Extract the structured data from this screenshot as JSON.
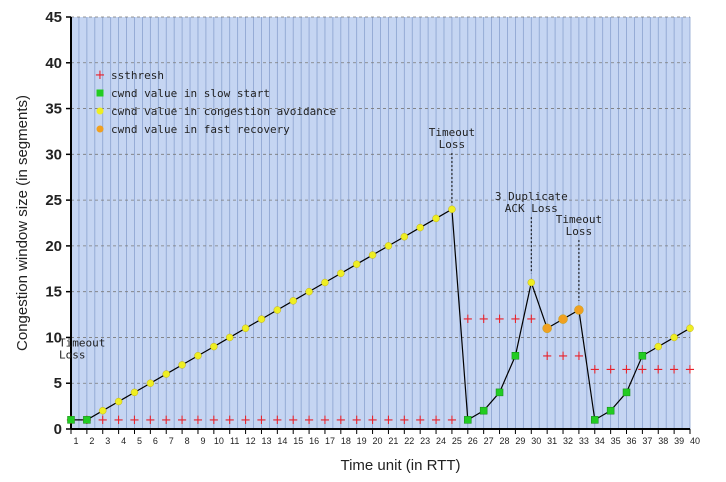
{
  "chart_data": {
    "type": "line",
    "xlabel": "Time unit (in RTT)",
    "ylabel": "Congestion window size (in segments)",
    "xlim": [
      1,
      40
    ],
    "ylim": [
      0,
      45
    ],
    "y_ticks": [
      0,
      5,
      10,
      15,
      20,
      25,
      30,
      35,
      40,
      45
    ],
    "x_ticks": [
      1,
      2,
      3,
      4,
      5,
      6,
      7,
      8,
      9,
      10,
      11,
      12,
      13,
      14,
      15,
      16,
      17,
      18,
      19,
      20,
      21,
      22,
      23,
      24,
      25,
      26,
      27,
      28,
      29,
      30,
      31,
      32,
      33,
      34,
      35,
      36,
      37,
      38,
      39,
      40
    ],
    "grid": true,
    "legend": {
      "placement": "top-left",
      "entries": [
        {
          "key": "ssthresh",
          "label": "ssthresh",
          "color": "#e8212a",
          "marker": "plus"
        },
        {
          "key": "slow_start",
          "label": "cwnd value in slow start",
          "color": "#22cc22",
          "marker": "square"
        },
        {
          "key": "congestion_avoidance",
          "label": "cwnd value in congestion avoidance",
          "color": "#eeee22",
          "marker": "circle"
        },
        {
          "key": "fast_recovery",
          "label": "cwnd value in fast recovery",
          "color": "#f0a020",
          "marker": "circle"
        }
      ]
    },
    "cwnd": [
      {
        "x": 1,
        "y": 1,
        "phase": "slow_start"
      },
      {
        "x": 2,
        "y": 1,
        "phase": "slow_start"
      },
      {
        "x": 3,
        "y": 2,
        "phase": "congestion_avoidance"
      },
      {
        "x": 4,
        "y": 3,
        "phase": "congestion_avoidance"
      },
      {
        "x": 5,
        "y": 4,
        "phase": "congestion_avoidance"
      },
      {
        "x": 6,
        "y": 5,
        "phase": "congestion_avoidance"
      },
      {
        "x": 7,
        "y": 6,
        "phase": "congestion_avoidance"
      },
      {
        "x": 8,
        "y": 7,
        "phase": "congestion_avoidance"
      },
      {
        "x": 9,
        "y": 8,
        "phase": "congestion_avoidance"
      },
      {
        "x": 10,
        "y": 9,
        "phase": "congestion_avoidance"
      },
      {
        "x": 11,
        "y": 10,
        "phase": "congestion_avoidance"
      },
      {
        "x": 12,
        "y": 11,
        "phase": "congestion_avoidance"
      },
      {
        "x": 13,
        "y": 12,
        "phase": "congestion_avoidance"
      },
      {
        "x": 14,
        "y": 13,
        "phase": "congestion_avoidance"
      },
      {
        "x": 15,
        "y": 14,
        "phase": "congestion_avoidance"
      },
      {
        "x": 16,
        "y": 15,
        "phase": "congestion_avoidance"
      },
      {
        "x": 17,
        "y": 16,
        "phase": "congestion_avoidance"
      },
      {
        "x": 18,
        "y": 17,
        "phase": "congestion_avoidance"
      },
      {
        "x": 19,
        "y": 18,
        "phase": "congestion_avoidance"
      },
      {
        "x": 20,
        "y": 19,
        "phase": "congestion_avoidance"
      },
      {
        "x": 21,
        "y": 20,
        "phase": "congestion_avoidance"
      },
      {
        "x": 22,
        "y": 21,
        "phase": "congestion_avoidance"
      },
      {
        "x": 23,
        "y": 22,
        "phase": "congestion_avoidance"
      },
      {
        "x": 24,
        "y": 23,
        "phase": "congestion_avoidance"
      },
      {
        "x": 25,
        "y": 24,
        "phase": "congestion_avoidance"
      },
      {
        "x": 26,
        "y": 1,
        "phase": "slow_start"
      },
      {
        "x": 27,
        "y": 2,
        "phase": "slow_start"
      },
      {
        "x": 28,
        "y": 4,
        "phase": "slow_start"
      },
      {
        "x": 29,
        "y": 8,
        "phase": "slow_start"
      },
      {
        "x": 30,
        "y": 16,
        "phase": "congestion_avoidance"
      },
      {
        "x": 31,
        "y": 11,
        "phase": "fast_recovery"
      },
      {
        "x": 32,
        "y": 12,
        "phase": "fast_recovery"
      },
      {
        "x": 33,
        "y": 13,
        "phase": "fast_recovery"
      },
      {
        "x": 34,
        "y": 1,
        "phase": "slow_start"
      },
      {
        "x": 35,
        "y": 2,
        "phase": "slow_start"
      },
      {
        "x": 36,
        "y": 4,
        "phase": "slow_start"
      },
      {
        "x": 37,
        "y": 8,
        "phase": "slow_start"
      },
      {
        "x": 38,
        "y": 9,
        "phase": "congestion_avoidance"
      },
      {
        "x": 39,
        "y": 10,
        "phase": "congestion_avoidance"
      },
      {
        "x": 40,
        "y": 11,
        "phase": "congestion_avoidance"
      }
    ],
    "ssthresh": [
      {
        "x": 1,
        "y": 1
      },
      {
        "x": 2,
        "y": 1
      },
      {
        "x": 3,
        "y": 1
      },
      {
        "x": 4,
        "y": 1
      },
      {
        "x": 5,
        "y": 1
      },
      {
        "x": 6,
        "y": 1
      },
      {
        "x": 7,
        "y": 1
      },
      {
        "x": 8,
        "y": 1
      },
      {
        "x": 9,
        "y": 1
      },
      {
        "x": 10,
        "y": 1
      },
      {
        "x": 11,
        "y": 1
      },
      {
        "x": 12,
        "y": 1
      },
      {
        "x": 13,
        "y": 1
      },
      {
        "x": 14,
        "y": 1
      },
      {
        "x": 15,
        "y": 1
      },
      {
        "x": 16,
        "y": 1
      },
      {
        "x": 17,
        "y": 1
      },
      {
        "x": 18,
        "y": 1
      },
      {
        "x": 19,
        "y": 1
      },
      {
        "x": 20,
        "y": 1
      },
      {
        "x": 21,
        "y": 1
      },
      {
        "x": 22,
        "y": 1
      },
      {
        "x": 23,
        "y": 1
      },
      {
        "x": 24,
        "y": 1
      },
      {
        "x": 25,
        "y": 1
      },
      {
        "x": 26,
        "y": 12
      },
      {
        "x": 27,
        "y": 12
      },
      {
        "x": 28,
        "y": 12
      },
      {
        "x": 29,
        "y": 12
      },
      {
        "x": 30,
        "y": 12
      },
      {
        "x": 31,
        "y": 8
      },
      {
        "x": 32,
        "y": 8
      },
      {
        "x": 33,
        "y": 8
      },
      {
        "x": 34,
        "y": 6.5
      },
      {
        "x": 35,
        "y": 6.5
      },
      {
        "x": 36,
        "y": 6.5
      },
      {
        "x": 37,
        "y": 6.5
      },
      {
        "x": 38,
        "y": 6.5
      },
      {
        "x": 39,
        "y": 6.5
      },
      {
        "x": 40,
        "y": 6.5
      }
    ],
    "annotations": [
      {
        "lines": [
          "Timeout",
          "Loss"
        ],
        "x": 1,
        "y": 9,
        "anchor": "start",
        "pointer": false
      },
      {
        "lines": [
          "Timeout",
          "Loss"
        ],
        "x": 25,
        "y": 32,
        "anchor": "middle",
        "pointer": true,
        "pointer_to": 24.5
      },
      {
        "lines": [
          "3 Duplicate",
          "ACK Loss"
        ],
        "x": 30,
        "y": 25,
        "anchor": "middle",
        "pointer": true,
        "pointer_to": 17
      },
      {
        "lines": [
          "Timeout",
          "Loss"
        ],
        "x": 33,
        "y": 22.5,
        "anchor": "middle",
        "pointer": true,
        "pointer_to": 14
      }
    ]
  }
}
